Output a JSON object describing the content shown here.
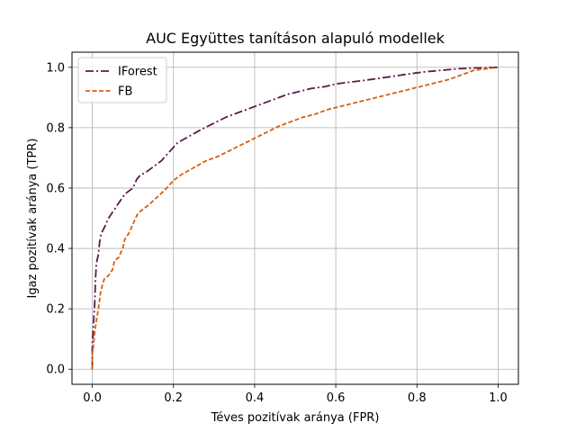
{
  "chart_data": {
    "type": "line",
    "title": "AUC Együttes tanításon alapuló modellek",
    "xlabel": "Téves pozitívak aránya (FPR)",
    "ylabel": "Igaz pozitívak aránya (TPR)",
    "xlim": [
      -0.05,
      1.05
    ],
    "ylim": [
      -0.05,
      1.05
    ],
    "xticks": [
      0.0,
      0.2,
      0.4,
      0.6,
      0.8,
      1.0
    ],
    "xtick_labels": [
      "0.0",
      "0.2",
      "0.4",
      "0.6",
      "0.8",
      "1.0"
    ],
    "yticks": [
      0.0,
      0.2,
      0.4,
      0.6,
      0.8,
      1.0
    ],
    "ytick_labels": [
      "0.0",
      "0.2",
      "0.4",
      "0.6",
      "0.8",
      "1.0"
    ],
    "grid": true,
    "legend_position": "top-left",
    "series": [
      {
        "name": "IForest",
        "color": "#5b1a4d",
        "linestyle": "dashdot",
        "points": [
          [
            0.0,
            0.0
          ],
          [
            0.0,
            0.08
          ],
          [
            0.003,
            0.15
          ],
          [
            0.006,
            0.22
          ],
          [
            0.008,
            0.3
          ],
          [
            0.01,
            0.35
          ],
          [
            0.015,
            0.38
          ],
          [
            0.018,
            0.42
          ],
          [
            0.022,
            0.45
          ],
          [
            0.03,
            0.47
          ],
          [
            0.04,
            0.5
          ],
          [
            0.05,
            0.52
          ],
          [
            0.06,
            0.54
          ],
          [
            0.07,
            0.56
          ],
          [
            0.08,
            0.58
          ],
          [
            0.09,
            0.59
          ],
          [
            0.1,
            0.6
          ],
          [
            0.11,
            0.63
          ],
          [
            0.12,
            0.645
          ],
          [
            0.13,
            0.65
          ],
          [
            0.15,
            0.67
          ],
          [
            0.17,
            0.69
          ],
          [
            0.19,
            0.72
          ],
          [
            0.21,
            0.75
          ],
          [
            0.23,
            0.765
          ],
          [
            0.25,
            0.78
          ],
          [
            0.27,
            0.795
          ],
          [
            0.3,
            0.815
          ],
          [
            0.33,
            0.835
          ],
          [
            0.36,
            0.85
          ],
          [
            0.39,
            0.865
          ],
          [
            0.42,
            0.88
          ],
          [
            0.45,
            0.895
          ],
          [
            0.48,
            0.91
          ],
          [
            0.51,
            0.92
          ],
          [
            0.54,
            0.93
          ],
          [
            0.57,
            0.935
          ],
          [
            0.6,
            0.945
          ],
          [
            0.63,
            0.95
          ],
          [
            0.66,
            0.955
          ],
          [
            0.7,
            0.962
          ],
          [
            0.74,
            0.97
          ],
          [
            0.78,
            0.978
          ],
          [
            0.82,
            0.985
          ],
          [
            0.86,
            0.99
          ],
          [
            0.9,
            0.995
          ],
          [
            0.95,
            0.998
          ],
          [
            1.0,
            1.0
          ]
        ]
      },
      {
        "name": "FB",
        "color": "#d95f0e",
        "linestyle": "dashed",
        "points": [
          [
            0.0,
            0.0
          ],
          [
            0.0,
            0.05
          ],
          [
            0.003,
            0.08
          ],
          [
            0.006,
            0.12
          ],
          [
            0.01,
            0.16
          ],
          [
            0.015,
            0.2
          ],
          [
            0.02,
            0.25
          ],
          [
            0.025,
            0.28
          ],
          [
            0.03,
            0.3
          ],
          [
            0.04,
            0.31
          ],
          [
            0.05,
            0.33
          ],
          [
            0.055,
            0.36
          ],
          [
            0.065,
            0.37
          ],
          [
            0.075,
            0.4
          ],
          [
            0.08,
            0.43
          ],
          [
            0.09,
            0.45
          ],
          [
            0.1,
            0.48
          ],
          [
            0.11,
            0.51
          ],
          [
            0.12,
            0.525
          ],
          [
            0.14,
            0.545
          ],
          [
            0.16,
            0.57
          ],
          [
            0.18,
            0.595
          ],
          [
            0.2,
            0.625
          ],
          [
            0.22,
            0.645
          ],
          [
            0.24,
            0.66
          ],
          [
            0.26,
            0.675
          ],
          [
            0.28,
            0.69
          ],
          [
            0.31,
            0.705
          ],
          [
            0.34,
            0.725
          ],
          [
            0.37,
            0.745
          ],
          [
            0.4,
            0.765
          ],
          [
            0.43,
            0.785
          ],
          [
            0.46,
            0.805
          ],
          [
            0.49,
            0.82
          ],
          [
            0.52,
            0.835
          ],
          [
            0.55,
            0.845
          ],
          [
            0.58,
            0.86
          ],
          [
            0.61,
            0.87
          ],
          [
            0.64,
            0.88
          ],
          [
            0.67,
            0.89
          ],
          [
            0.7,
            0.9
          ],
          [
            0.73,
            0.91
          ],
          [
            0.76,
            0.92
          ],
          [
            0.79,
            0.93
          ],
          [
            0.82,
            0.94
          ],
          [
            0.85,
            0.95
          ],
          [
            0.88,
            0.96
          ],
          [
            0.91,
            0.975
          ],
          [
            0.94,
            0.99
          ],
          [
            0.97,
            0.995
          ],
          [
            1.0,
            1.0
          ]
        ]
      }
    ]
  }
}
